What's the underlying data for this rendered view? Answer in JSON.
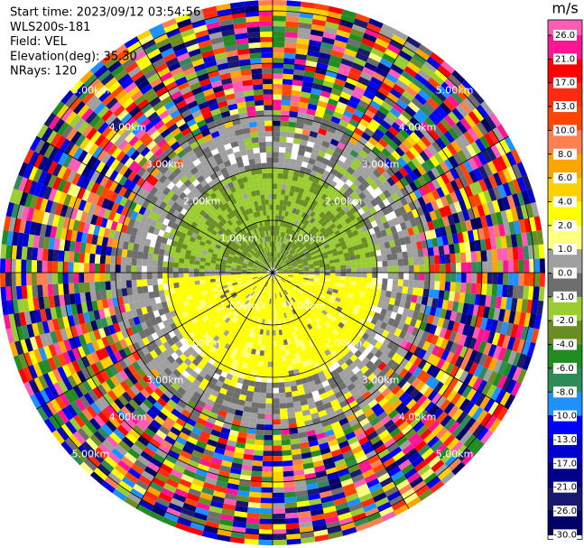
{
  "header": {
    "lines": [
      "Start time: 2023/09/12 03:54:56",
      "WLS200s-181",
      "Field: VEL",
      "Elevation(deg): 35.30",
      "NRays: 120"
    ]
  },
  "range_labels": [
    "1.00km",
    "2.00km",
    "3.00km",
    "4.00km",
    "5.00km"
  ],
  "colorbar": {
    "unit": "m/s",
    "ticks": [
      {
        "value": 26,
        "label": "26.0"
      },
      {
        "value": 21,
        "label": "21.0"
      },
      {
        "value": 17,
        "label": "17.0"
      },
      {
        "value": 13,
        "label": "13.0"
      },
      {
        "value": 10,
        "label": "10.0"
      },
      {
        "value": 8,
        "label": "8.0"
      },
      {
        "value": 6,
        "label": "6.0"
      },
      {
        "value": 4,
        "label": "4.0"
      },
      {
        "value": 2,
        "label": "2.0"
      },
      {
        "value": 1,
        "label": "1.0"
      },
      {
        "value": 0,
        "label": "0.0"
      },
      {
        "value": -1,
        "label": "-1.0"
      },
      {
        "value": -2,
        "label": "-2.0"
      },
      {
        "value": -4,
        "label": "-4.0"
      },
      {
        "value": -6,
        "label": "-6.0"
      },
      {
        "value": -8,
        "label": "-8.0"
      },
      {
        "value": -10,
        "label": "-10.0"
      },
      {
        "value": -13,
        "label": "-13.0"
      },
      {
        "value": -17,
        "label": "-17.0"
      },
      {
        "value": -21,
        "label": "-21.0"
      },
      {
        "value": -26,
        "label": "-26.0"
      },
      {
        "value": -30,
        "label": "-30.0"
      }
    ],
    "colors": [
      "#ff5cb8",
      "#ff1493",
      "#ff0000",
      "#ff2a10",
      "#ff4500",
      "#ff7f50",
      "#ffa500",
      "#ffd000",
      "#ffff00",
      "#ffff80",
      "#a0a0a0",
      "#6e6e6e",
      "#9acd32",
      "#6b8e23",
      "#228b22",
      "#2e8b57",
      "#1e90ff",
      "#0000ff",
      "#0000cd",
      "#00008b",
      "#191970",
      "#000066"
    ]
  }
}
